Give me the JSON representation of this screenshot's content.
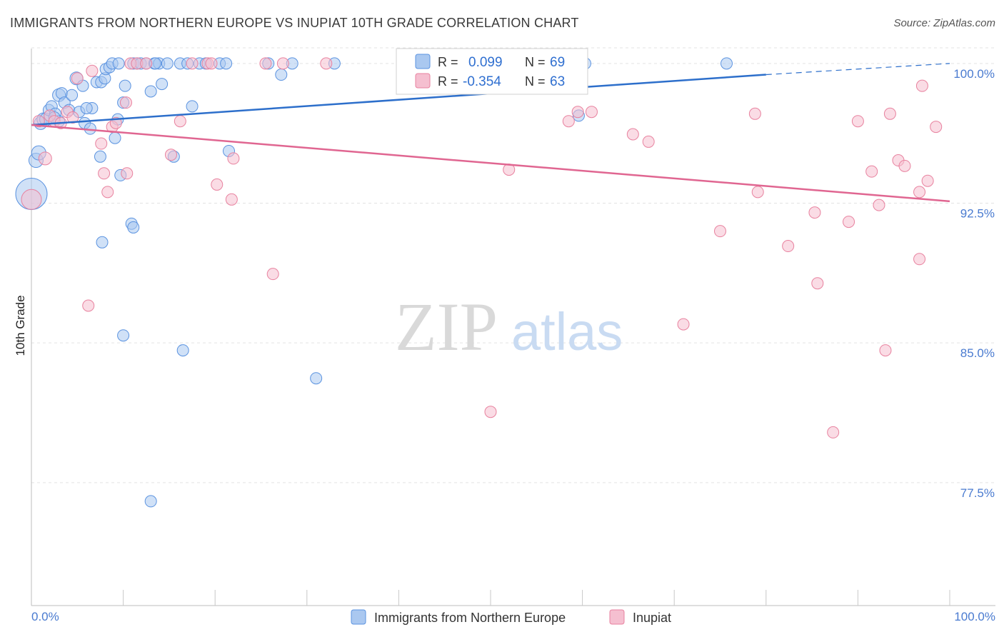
{
  "title": "IMMIGRANTS FROM NORTHERN EUROPE VS INUPIAT 10TH GRADE CORRELATION CHART",
  "source": "Source: ZipAtlas.com",
  "watermark": {
    "zip": "ZIP",
    "atlas": "atlas"
  },
  "colors": {
    "blue": "#5b93e0",
    "blue_fill": "#aac8f0",
    "blue_line": "#2d6fcb",
    "pink": "#e8829f",
    "pink_fill": "#f5bfd0",
    "pink_line": "#e06691",
    "tick_text": "#4a7bd0",
    "grid": "#e3e3e3"
  },
  "legend": {
    "r_label": "R =",
    "n_label": "N =",
    "entries": [
      {
        "r": "0.099",
        "n": "69",
        "color": "#aac8f0",
        "stroke": "#5b93e0"
      },
      {
        "r": "-0.354",
        "n": "63",
        "color": "#f5bfd0",
        "stroke": "#e8829f"
      }
    ]
  },
  "bottom_legend": [
    {
      "label": "Immigrants from Northern Europe",
      "color": "#aac8f0",
      "stroke": "#5b93e0"
    },
    {
      "label": "Inupiat",
      "color": "#f5bfd0",
      "stroke": "#e8829f"
    }
  ],
  "chart_data": {
    "type": "scatter",
    "title": "IMMIGRANTS FROM NORTHERN EUROPE VS INUPIAT 10TH GRADE CORRELATION CHART",
    "xlabel": "",
    "ylabel": "10th Grade",
    "xlim": [
      0,
      100
    ],
    "ylim": [
      70.9,
      100.8
    ],
    "x_tick_labels": [
      "0.0%",
      "100.0%"
    ],
    "y_ticks": [
      {
        "value": 100.0,
        "label": "100.0%"
      },
      {
        "value": 92.5,
        "label": "92.5%"
      },
      {
        "value": 85.0,
        "label": "85.0%"
      },
      {
        "value": 77.5,
        "label": "77.5%"
      }
    ],
    "series": [
      {
        "name": "Immigrants from Northern Europe",
        "r": 0.099,
        "n": 69,
        "trend": {
          "x": [
            0,
            80
          ],
          "y": [
            96.7,
            99.4
          ],
          "dashed_to": [
            100,
            100.0
          ]
        },
        "points": [
          [
            0.0,
            93.0,
            22
          ],
          [
            0.5,
            94.8,
            10
          ],
          [
            0.8,
            95.2,
            10
          ],
          [
            1.0,
            96.8,
            9
          ],
          [
            1.3,
            97.0,
            9
          ],
          [
            1.6,
            97.0,
            9
          ],
          [
            1.9,
            97.5,
            8
          ],
          [
            2.2,
            97.7,
            8
          ],
          [
            2.6,
            97.3,
            8
          ],
          [
            3.0,
            98.3,
            9
          ],
          [
            3.3,
            98.4,
            8
          ],
          [
            3.6,
            97.9,
            8
          ],
          [
            4.1,
            97.5,
            8
          ],
          [
            4.4,
            98.3,
            8
          ],
          [
            4.9,
            99.2,
            9
          ],
          [
            5.6,
            98.8,
            8
          ],
          [
            5.2,
            97.4,
            8
          ],
          [
            5.8,
            96.8,
            8
          ],
          [
            6.4,
            96.5,
            8
          ],
          [
            6.6,
            97.6,
            8
          ],
          [
            7.1,
            99.0,
            8
          ],
          [
            7.6,
            99.0,
            8
          ],
          [
            8.0,
            99.2,
            8
          ],
          [
            8.1,
            99.7,
            8
          ],
          [
            8.5,
            99.8,
            8
          ],
          [
            8.8,
            100.0,
            8
          ],
          [
            9.1,
            96.0,
            8
          ],
          [
            9.4,
            97.0,
            8
          ],
          [
            9.7,
            94.0,
            8
          ],
          [
            10.0,
            97.9,
            8
          ],
          [
            10.2,
            98.8,
            8
          ],
          [
            10.9,
            91.4,
            8
          ],
          [
            11.1,
            91.2,
            8
          ],
          [
            11.1,
            100.0,
            8
          ],
          [
            11.5,
            100.0,
            8
          ],
          [
            11.9,
            100.0,
            8
          ],
          [
            12.5,
            100.0,
            8
          ],
          [
            13.0,
            98.5,
            8
          ],
          [
            13.4,
            100.0,
            8
          ],
          [
            13.9,
            100.0,
            8
          ],
          [
            14.2,
            98.9,
            8
          ],
          [
            14.8,
            100.0,
            8
          ],
          [
            15.5,
            95.0,
            8
          ],
          [
            16.2,
            100.0,
            8
          ],
          [
            17.0,
            100.0,
            8
          ],
          [
            17.5,
            97.7,
            8
          ],
          [
            18.3,
            100.0,
            8
          ],
          [
            19.0,
            100.0,
            8
          ],
          [
            20.5,
            100.0,
            8
          ],
          [
            21.2,
            100.0,
            8
          ],
          [
            21.5,
            95.3,
            8
          ],
          [
            25.8,
            100.0,
            8
          ],
          [
            27.2,
            99.4,
            8
          ],
          [
            28.4,
            100.0,
            8
          ],
          [
            33.0,
            100.0,
            8
          ],
          [
            59.6,
            97.2,
            8
          ],
          [
            60.3,
            100.0,
            8
          ],
          [
            75.7,
            100.0,
            8
          ],
          [
            3.0,
            96.9,
            8
          ],
          [
            7.5,
            95.0,
            8
          ],
          [
            7.7,
            90.4,
            8
          ],
          [
            10.0,
            85.4,
            8
          ],
          [
            13.0,
            76.5,
            8
          ],
          [
            16.5,
            84.6,
            8
          ],
          [
            31.0,
            83.1,
            8
          ],
          [
            13.5,
            100.0,
            8
          ],
          [
            2.5,
            97.1,
            8
          ],
          [
            6.0,
            97.6,
            8
          ],
          [
            9.5,
            100.0,
            8
          ]
        ]
      },
      {
        "name": "Inupiat",
        "r": -0.354,
        "n": 63,
        "trend": {
          "x": [
            0,
            100
          ],
          "y": [
            96.7,
            92.6
          ]
        },
        "points": [
          [
            0.0,
            92.7,
            14
          ],
          [
            0.8,
            96.9,
            8
          ],
          [
            1.5,
            94.9,
            9
          ],
          [
            2.0,
            97.2,
            8
          ],
          [
            2.5,
            96.9,
            8
          ],
          [
            3.2,
            96.8,
            8
          ],
          [
            3.9,
            97.4,
            8
          ],
          [
            4.5,
            97.1,
            8
          ],
          [
            5.0,
            99.2,
            8
          ],
          [
            6.2,
            87.0,
            8
          ],
          [
            6.6,
            99.6,
            8
          ],
          [
            7.6,
            95.7,
            8
          ],
          [
            7.9,
            94.1,
            8
          ],
          [
            8.3,
            93.1,
            8
          ],
          [
            8.8,
            96.6,
            8
          ],
          [
            9.2,
            96.8,
            8
          ],
          [
            10.3,
            97.9,
            8
          ],
          [
            10.4,
            94.1,
            8
          ],
          [
            10.8,
            100.0,
            8
          ],
          [
            11.5,
            100.0,
            8
          ],
          [
            12.5,
            100.0,
            8
          ],
          [
            15.2,
            95.1,
            8
          ],
          [
            16.2,
            96.9,
            8
          ],
          [
            17.5,
            100.0,
            8
          ],
          [
            19.2,
            100.0,
            8
          ],
          [
            19.6,
            100.0,
            8
          ],
          [
            20.2,
            93.5,
            8
          ],
          [
            21.8,
            92.7,
            8
          ],
          [
            22.0,
            94.9,
            8
          ],
          [
            25.5,
            100.0,
            8
          ],
          [
            26.3,
            88.7,
            8
          ],
          [
            27.4,
            100.0,
            8
          ],
          [
            32.1,
            100.0,
            8
          ],
          [
            50.0,
            81.3,
            8
          ],
          [
            52.0,
            94.3,
            8
          ],
          [
            52.8,
            100.0,
            8
          ],
          [
            56.5,
            100.0,
            8
          ],
          [
            58.5,
            96.9,
            8
          ],
          [
            59.5,
            97.4,
            8
          ],
          [
            61.0,
            97.4,
            8
          ],
          [
            65.5,
            96.2,
            8
          ],
          [
            67.2,
            95.8,
            8
          ],
          [
            71.0,
            86.0,
            8
          ],
          [
            75.0,
            91.0,
            8
          ],
          [
            78.8,
            97.3,
            8
          ],
          [
            79.1,
            93.1,
            8
          ],
          [
            82.4,
            90.2,
            8
          ],
          [
            85.3,
            92.0,
            8
          ],
          [
            85.6,
            88.2,
            8
          ],
          [
            87.3,
            80.2,
            8
          ],
          [
            89.0,
            91.5,
            8
          ],
          [
            90.0,
            96.9,
            8
          ],
          [
            91.5,
            94.2,
            8
          ],
          [
            92.3,
            92.4,
            8
          ],
          [
            93.0,
            84.6,
            8
          ],
          [
            93.5,
            97.3,
            8
          ],
          [
            94.4,
            94.8,
            8
          ],
          [
            95.1,
            94.5,
            8
          ],
          [
            96.7,
            93.1,
            8
          ],
          [
            96.7,
            89.5,
            8
          ],
          [
            97.0,
            98.8,
            8
          ],
          [
            97.6,
            93.7,
            8
          ],
          [
            98.5,
            96.6,
            8
          ]
        ]
      }
    ]
  }
}
